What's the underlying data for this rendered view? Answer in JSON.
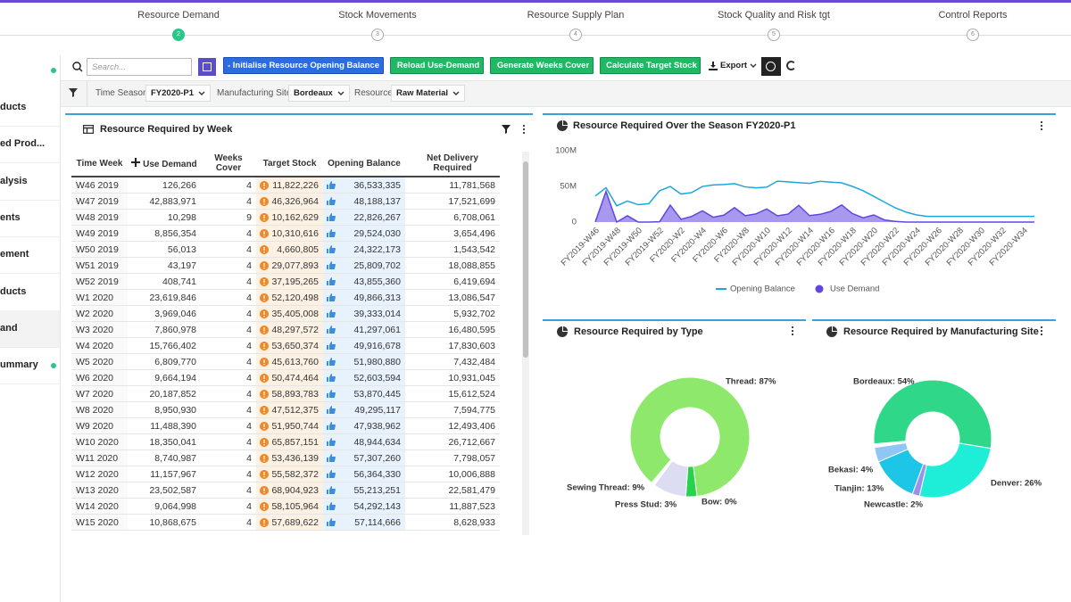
{
  "stepper": {
    "steps": [
      {
        "label": "Resource Demand",
        "number": 2
      },
      {
        "label": "Stock Movements",
        "number": 3
      },
      {
        "label": "Resource Supply Plan",
        "number": 4
      },
      {
        "label": "Stock Quality and Risk tgt",
        "number": 5
      },
      {
        "label": "Control Reports",
        "number": 6
      }
    ]
  },
  "sidebar": {
    "items": [
      "ducts",
      "ed Prod...",
      "alysis",
      "ents",
      "ement",
      "ducts",
      "and",
      "ummary"
    ]
  },
  "toolbar": {
    "search_placeholder": "Search...",
    "buttons": [
      "Initialise Resource Opening Balance",
      "Reload Use-Demand",
      "Generate Weeks Cover",
      "Calculate Target Stock"
    ],
    "export": "Export"
  },
  "filters": [
    {
      "label": "Time Season",
      "value": "FY2020-P1"
    },
    {
      "label": "Manufacturing Site",
      "value": "Bordeaux"
    },
    {
      "label": "Resource",
      "value": "Raw Material"
    }
  ],
  "table": {
    "title": "Resource Required by Week",
    "columns": [
      "Time Week",
      "Use Demand",
      "Weeks Cover",
      "Target Stock",
      "Opening Balance",
      "Net Delivery Required"
    ],
    "rows": [
      [
        "W46 2019",
        "126,266",
        "4",
        "11,822,226",
        "36,533,335",
        "11,781,568"
      ],
      [
        "W47 2019",
        "42,883,971",
        "4",
        "46,326,964",
        "48,188,137",
        "17,521,699"
      ],
      [
        "W48 2019",
        "10,298",
        "9",
        "10,162,629",
        "22,826,267",
        "6,708,061"
      ],
      [
        "W49 2019",
        "8,856,354",
        "4",
        "10,310,616",
        "29,524,030",
        "3,654,496"
      ],
      [
        "W50 2019",
        "56,013",
        "4",
        "4,660,805",
        "24,322,173",
        "1,543,542"
      ],
      [
        "W51 2019",
        "43,197",
        "4",
        "29,077,893",
        "25,809,702",
        "18,088,855"
      ],
      [
        "W52 2019",
        "408,741",
        "4",
        "37,195,265",
        "43,855,360",
        "6,419,694"
      ],
      [
        "W1 2020",
        "23,619,846",
        "4",
        "52,120,498",
        "49,866,313",
        "13,086,547"
      ],
      [
        "W2 2020",
        "3,969,046",
        "4",
        "35,405,008",
        "39,333,014",
        "5,932,702"
      ],
      [
        "W3 2020",
        "7,860,978",
        "4",
        "48,297,572",
        "41,297,061",
        "16,480,595"
      ],
      [
        "W4 2020",
        "15,766,402",
        "4",
        "53,650,374",
        "49,916,678",
        "17,830,603"
      ],
      [
        "W5 2020",
        "6,809,770",
        "4",
        "45,613,760",
        "51,980,880",
        "7,432,484"
      ],
      [
        "W6 2020",
        "9,664,194",
        "4",
        "50,474,464",
        "52,603,594",
        "10,931,045"
      ],
      [
        "W7 2020",
        "20,187,852",
        "4",
        "58,893,783",
        "53,870,445",
        "15,612,524"
      ],
      [
        "W8 2020",
        "8,950,930",
        "4",
        "47,512,375",
        "49,295,117",
        "7,594,775"
      ],
      [
        "W9 2020",
        "11,488,390",
        "4",
        "51,950,744",
        "47,938,962",
        "12,493,406"
      ],
      [
        "W10 2020",
        "18,350,041",
        "4",
        "65,857,151",
        "48,944,634",
        "26,712,667"
      ],
      [
        "W11 2020",
        "8,740,987",
        "4",
        "53,436,139",
        "57,307,260",
        "7,798,057"
      ],
      [
        "W12 2020",
        "11,157,967",
        "4",
        "55,582,372",
        "56,364,330",
        "10,006,888"
      ],
      [
        "W13 2020",
        "23,502,587",
        "4",
        "68,904,923",
        "55,213,251",
        "22,581,479"
      ],
      [
        "W14 2020",
        "9,064,998",
        "4",
        "58,105,964",
        "54,292,143",
        "11,887,523"
      ],
      [
        "W15 2020",
        "10,868,675",
        "4",
        "57,689,622",
        "57,114,666",
        "8,628,933"
      ]
    ]
  },
  "chart_data": [
    {
      "type": "line",
      "title": "Resource Required Over the Season FY2020-P1",
      "categories": [
        "FY2019-W46",
        null,
        "FY2019-W48",
        null,
        "FY2019-W50",
        null,
        "FY2019-W52",
        null,
        "FY2020-W2",
        null,
        "FY2020-W4",
        null,
        "FY2020-W6",
        null,
        "FY2020-W8",
        null,
        "FY2020-W10",
        null,
        "FY2020-W12",
        null,
        "FY2020-W14",
        null,
        "FY2020-W16",
        null,
        "FY2020-W18",
        null,
        "FY2020-W20",
        null,
        "FY2020-W22",
        null,
        "FY2020-W24",
        null,
        "FY2020-W26",
        null,
        "FY2020-W28",
        null,
        "FY2020-W30",
        null,
        "FY2020-W32",
        null,
        "FY2020-W34",
        null
      ],
      "series": [
        {
          "name": "Opening Balance",
          "color": "#1fa5de",
          "values": [
            36533335,
            48188137,
            22826267,
            29524030,
            24322173,
            25809702,
            43855360,
            49866313,
            39333014,
            41297061,
            49916678,
            51980880,
            52603594,
            53870445,
            49295117,
            47938962,
            48944634,
            57307260,
            56364330,
            55213251,
            54292143,
            57114666,
            56000000,
            55000000,
            50000000,
            44000000,
            36000000,
            28000000,
            20000000,
            14000000,
            10000000,
            8000000,
            8000000,
            8000000,
            8000000,
            8000000,
            8000000,
            8000000,
            8000000,
            8000000,
            8000000,
            8000000
          ]
        },
        {
          "name": "Use Demand",
          "color": "#6246e0",
          "area": true,
          "values": [
            126266,
            42883971,
            10298,
            8856354,
            56013,
            43197,
            408741,
            23619846,
            3969046,
            7860978,
            15766402,
            6809770,
            9664194,
            20187852,
            8950930,
            11488390,
            18350041,
            8740987,
            11157967,
            23502587,
            9064998,
            10868675,
            15000000,
            24000000,
            12000000,
            6000000,
            10000000,
            3000000,
            1000000,
            0,
            0,
            0,
            0,
            0,
            0,
            0,
            0,
            0,
            0,
            0,
            0,
            0
          ]
        }
      ],
      "ylim": [
        0,
        100000000
      ],
      "yticks": [
        0,
        {
          "value": 50000000,
          "label": "50M"
        },
        {
          "value": 100000000,
          "label": "100M"
        }
      ],
      "legend": "bottom"
    },
    {
      "type": "pie",
      "title": "Resource Required by Type",
      "values": [
        87,
        0,
        3,
        9
      ],
      "value_labels": [
        "Thread: 87%",
        "Bow: 0%",
        "Press Stud: 3%",
        "Sewing Thread: 9%"
      ],
      "colors": [
        "#8ee86c",
        "#1cc4a0",
        "#27d24c",
        "#dcdcf2"
      ]
    },
    {
      "type": "pie",
      "title": "Resource Required by Manufacturing Site",
      "values": [
        54,
        26,
        2,
        13,
        4
      ],
      "value_labels": [
        "Bordeaux: 54%",
        "Denver: 26%",
        "Newcastle: 2%",
        "Tianjin: 13%",
        "Bekasi: 4%"
      ],
      "colors": [
        "#2fd789",
        "#1eeed8",
        "#9c90e8",
        "#1dc6e6",
        "#8fc6f5"
      ]
    }
  ]
}
